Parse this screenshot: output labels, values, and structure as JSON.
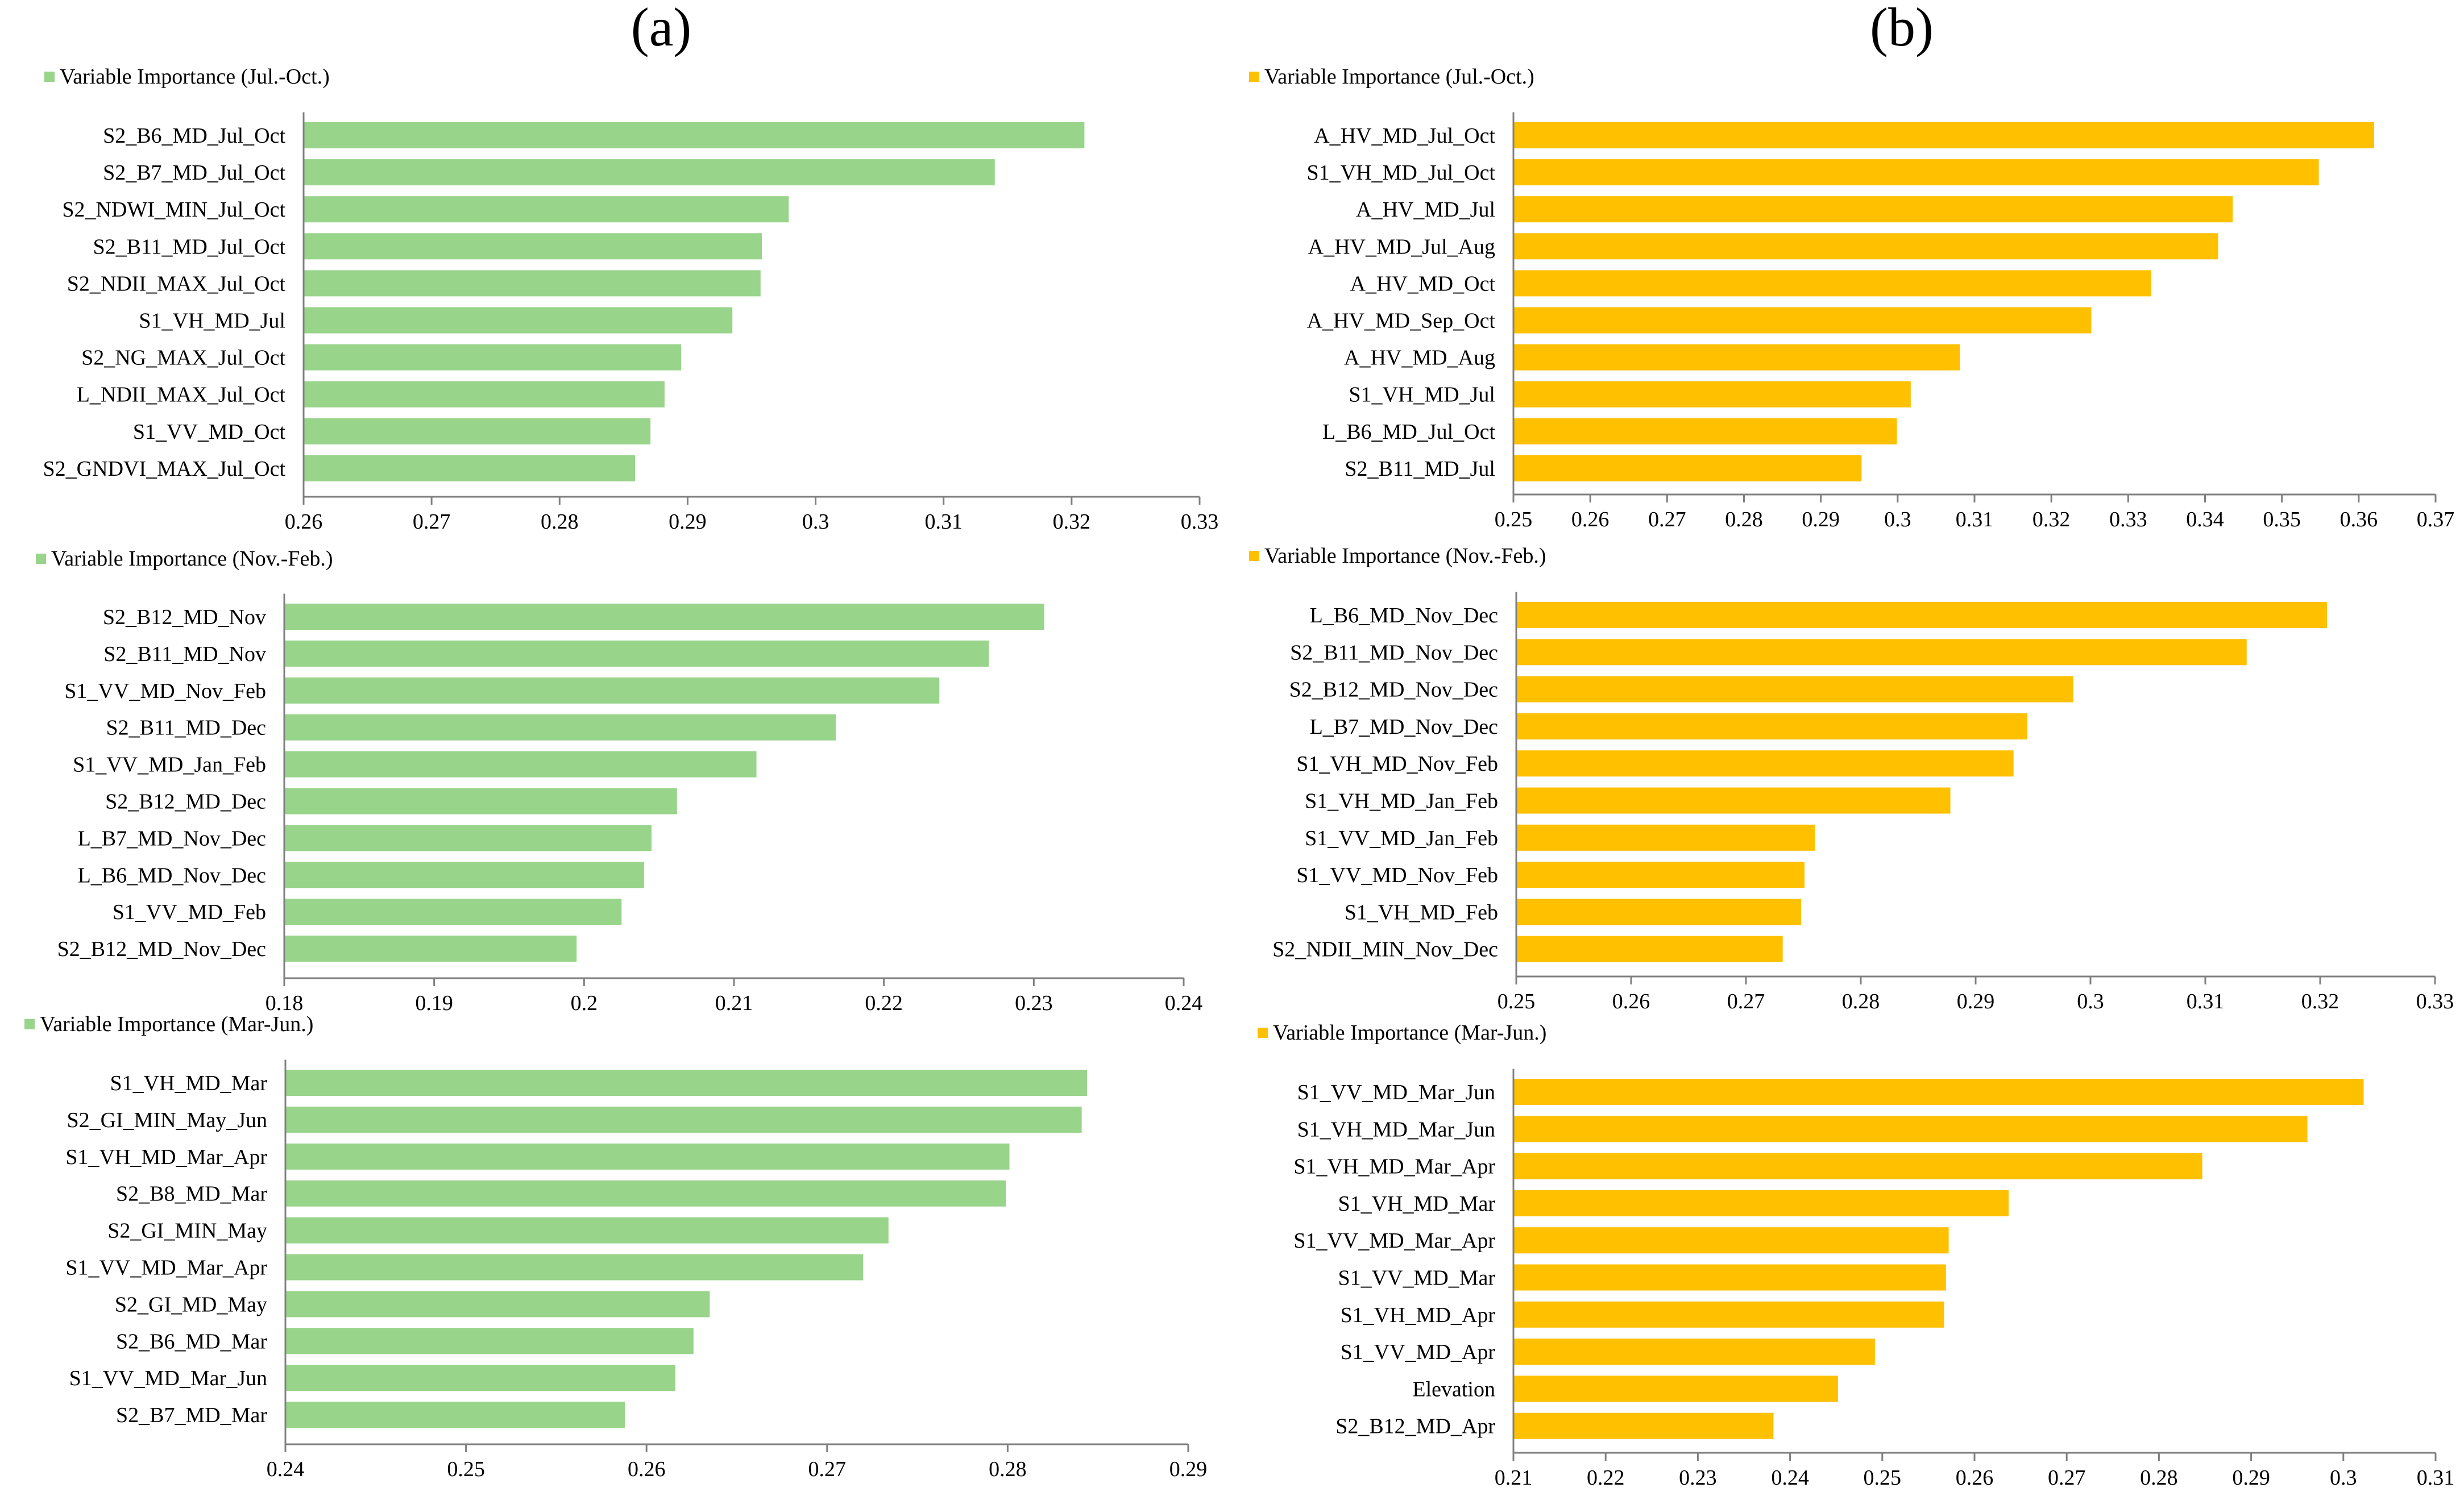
{
  "panel_labels": [
    "(a)",
    "(b)"
  ],
  "colors": {
    "green": "#98d48a",
    "gold": "#ffc000",
    "axis": "#7f7f7f"
  },
  "chart_data": [
    {
      "type": "bar",
      "orientation": "horizontal",
      "panel": "(a)",
      "legend": "Variable Importance (Jul.-Oct.)",
      "categories": [
        "S2_B6_MD_Jul_Oct",
        "S2_B7_MD_Jul_Oct",
        "S2_NDWI_MIN_Jul_Oct",
        "S2_B11_MD_Jul_Oct",
        "S2_NDII_MAX_Jul_Oct",
        "S1_VH_MD_Jul",
        "S2_NG_MAX_Jul_Oct",
        "L_NDII_MAX_Jul_Oct",
        "S1_VV_MD_Oct",
        "S2_GNDVI_MAX_Jul_Oct"
      ],
      "values": [
        0.321,
        0.314,
        0.2979,
        0.2958,
        0.2957,
        0.2935,
        0.2895,
        0.2882,
        0.2871,
        0.2859
      ],
      "xlim": [
        0.26,
        0.33
      ],
      "ticks": [
        "0.26",
        "0.27",
        "0.28",
        "0.29",
        "0.3",
        "0.31",
        "0.32",
        "0.33"
      ]
    },
    {
      "type": "bar",
      "orientation": "horizontal",
      "panel": "(b)",
      "legend": "Variable Importance (Jul.-Oct.)",
      "categories": [
        "A_HV_MD_Jul_Oct",
        "S1_VH_MD_Jul_Oct",
        "A_HV_MD_Jul",
        "A_HV_MD_Jul_Aug",
        "A_HV_MD_Oct",
        "A_HV_MD_Sep_Oct",
        "A_HV_MD_Aug",
        "S1_VH_MD_Jul",
        "L_B6_MD_Jul_Oct",
        "S2_B11_MD_Jul"
      ],
      "values": [
        0.362,
        0.3548,
        0.3436,
        0.3417,
        0.333,
        0.3252,
        0.3081,
        0.3017,
        0.2999,
        0.2953
      ],
      "xlim": [
        0.25,
        0.37
      ],
      "ticks": [
        "0.25",
        "0.26",
        "0.27",
        "0.28",
        "0.29",
        "0.3",
        "0.31",
        "0.32",
        "0.33",
        "0.34",
        "0.35",
        "0.36",
        "0.37"
      ]
    },
    {
      "type": "bar",
      "orientation": "horizontal",
      "panel": "(a)",
      "legend": "Variable Importance (Nov.-Feb.)",
      "categories": [
        "S2_B12_MD_Nov",
        "S2_B11_MD_Nov",
        "S1_VV_MD_Nov_Feb",
        "S2_B11_MD_Dec",
        "S1_VV_MD_Jan_Feb",
        "S2_B12_MD_Dec",
        "L_B7_MD_Nov_Dec",
        "L_B6_MD_Nov_Dec",
        "S1_VV_MD_Feb",
        "S2_B12_MD_Nov_Dec"
      ],
      "values": [
        0.2307,
        0.227,
        0.2237,
        0.2168,
        0.2115,
        0.2062,
        0.2045,
        0.204,
        0.2025,
        0.1995
      ],
      "xlim": [
        0.18,
        0.24
      ],
      "ticks": [
        "0.18",
        "0.19",
        "0.2",
        "0.21",
        "0.22",
        "0.23",
        "0.24"
      ]
    },
    {
      "type": "bar",
      "orientation": "horizontal",
      "panel": "(b)",
      "legend": "Variable Importance (Nov.-Feb.)",
      "categories": [
        "L_B6_MD_Nov_Dec",
        "S2_B11_MD_Nov_Dec",
        "S2_B12_MD_Nov_Dec",
        "L_B7_MD_Nov_Dec",
        "S1_VH_MD_Nov_Feb",
        "S1_VH_MD_Jan_Feb",
        "S1_VV_MD_Jan_Feb",
        "S1_VV_MD_Nov_Feb",
        "S1_VH_MD_Feb",
        "S2_NDII_MIN_Nov_Dec"
      ],
      "values": [
        0.3206,
        0.3136,
        0.2985,
        0.2945,
        0.2933,
        0.2878,
        0.276,
        0.2751,
        0.2748,
        0.2732
      ],
      "xlim": [
        0.25,
        0.33
      ],
      "ticks": [
        "0.25",
        "0.26",
        "0.27",
        "0.28",
        "0.29",
        "0.3",
        "0.31",
        "0.32",
        "0.33"
      ]
    },
    {
      "type": "bar",
      "orientation": "horizontal",
      "panel": "(a)",
      "legend": "Variable Importance (Mar-Jun.)",
      "categories": [
        "S1_VH_MD_Mar",
        "S2_GI_MIN_May_Jun",
        "S1_VH_MD_Mar_Apr",
        "S2_B8_MD_Mar",
        "S2_GI_MIN_May",
        "S1_VV_MD_Mar_Apr",
        "S2_GI_MD_May",
        "S2_B6_MD_Mar",
        "S1_VV_MD_Mar_Jun",
        "S2_B7_MD_Mar"
      ],
      "values": [
        0.2844,
        0.2841,
        0.2801,
        0.2799,
        0.2734,
        0.272,
        0.2635,
        0.2626,
        0.2616,
        0.2588
      ],
      "xlim": [
        0.24,
        0.29
      ],
      "ticks": [
        "0.24",
        "0.25",
        "0.26",
        "0.27",
        "0.28",
        "0.29"
      ]
    },
    {
      "type": "bar",
      "orientation": "horizontal",
      "panel": "(b)",
      "legend": "Variable Importance (Mar-Jun.)",
      "categories": [
        "S1_VV_MD_Mar_Jun",
        "S1_VH_MD_Mar_Jun",
        "S1_VH_MD_Mar_Apr",
        "S1_VH_MD_Mar",
        "S1_VV_MD_Mar_Apr",
        "S1_VV_MD_Mar",
        "S1_VH_MD_Apr",
        "S1_VV_MD_Apr",
        "Elevation",
        "S2_B12_MD_Apr"
      ],
      "values": [
        0.3022,
        0.2961,
        0.2847,
        0.2637,
        0.2572,
        0.2569,
        0.2567,
        0.2492,
        0.2452,
        0.2382
      ],
      "xlim": [
        0.21,
        0.31
      ],
      "ticks": [
        "0.21",
        "0.22",
        "0.23",
        "0.24",
        "0.25",
        "0.26",
        "0.27",
        "0.28",
        "0.29",
        "0.3",
        "0.31"
      ]
    }
  ]
}
